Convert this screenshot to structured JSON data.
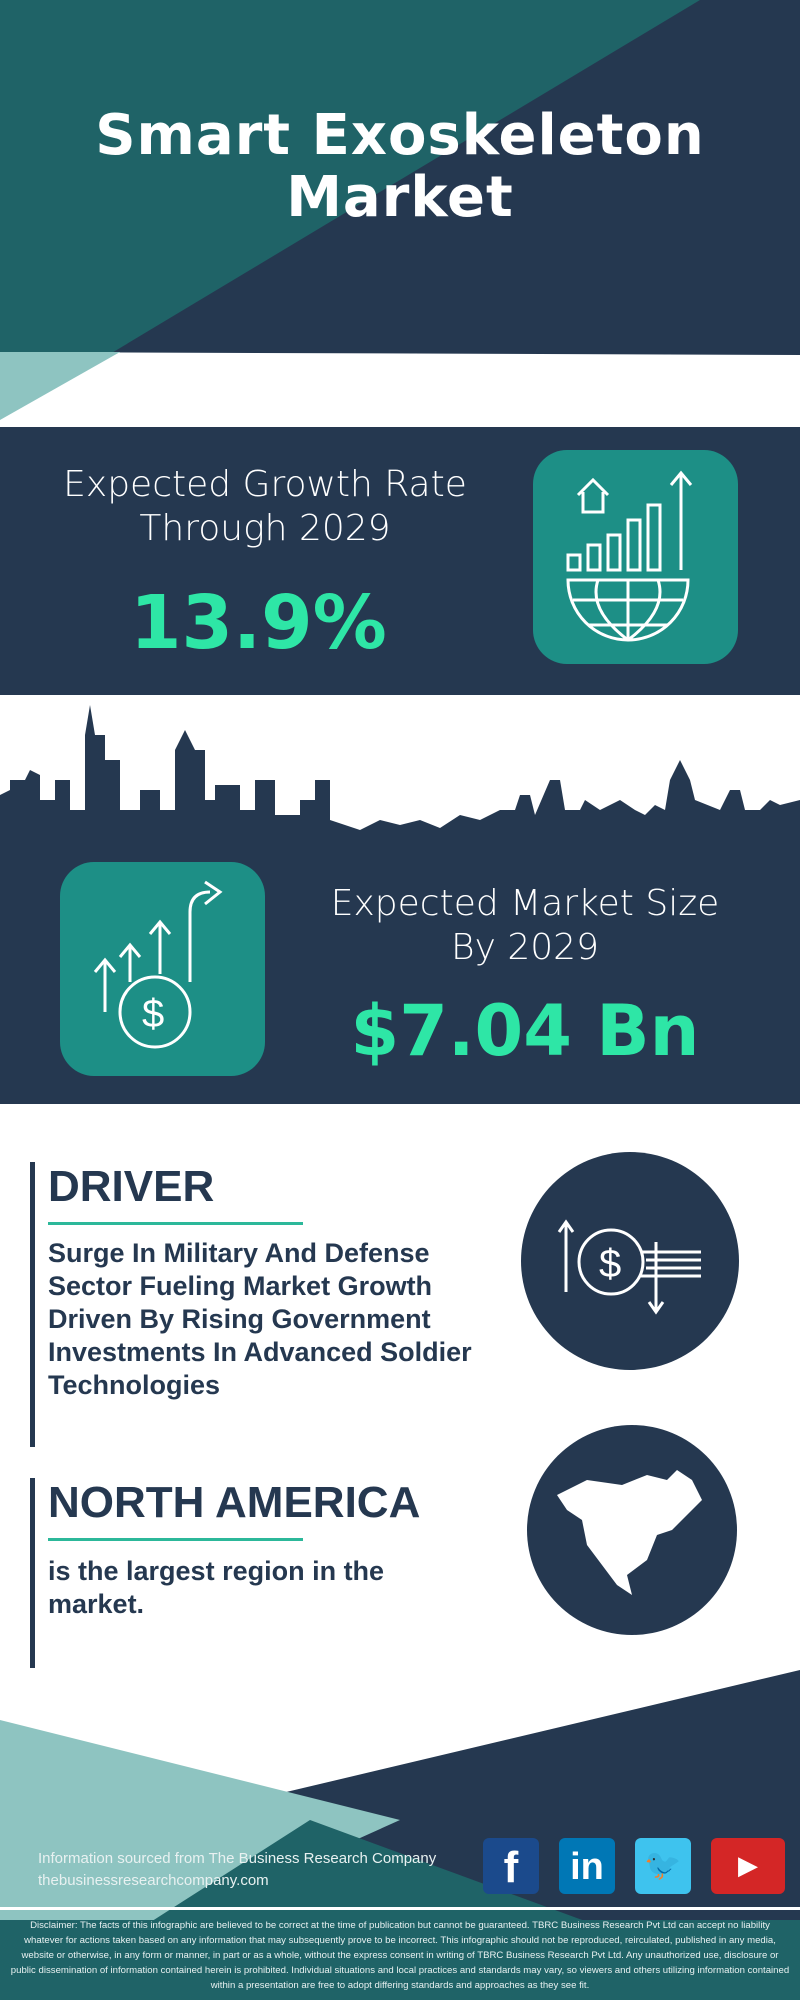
{
  "header": {
    "title": "Smart Exoskeleton Market"
  },
  "growth": {
    "label": "Expected Growth Rate Through 2029",
    "value": "13.9%",
    "icon": "globe-growth-chart-icon"
  },
  "market_size": {
    "label": "Expected Market Size By 2029",
    "value": "$7.04 Bn",
    "icon": "dollar-growth-arrows-icon"
  },
  "driver": {
    "heading": "DRIVER",
    "text": "Surge In Military And Defense Sector Fueling Market Growth Driven By Rising Government Investments In Advanced Soldier Technologies",
    "icon": "dollar-exchange-icon"
  },
  "region": {
    "heading": "NORTH AMERICA",
    "text": "is the largest region in the market.",
    "icon": "north-america-map-icon"
  },
  "footer": {
    "source": "Information sourced from The Business Research Company",
    "website": "thebusinessresearchcompany.com",
    "social": [
      {
        "name": "facebook",
        "glyph": "f",
        "color": "#1b4a8c"
      },
      {
        "name": "linkedin",
        "glyph": "in",
        "color": "#0077b5"
      },
      {
        "name": "twitter",
        "glyph": "🐦",
        "color": "#3ec3ee"
      },
      {
        "name": "youtube",
        "glyph": "▶",
        "color": "#d42626"
      }
    ],
    "disclaimer": "Disclaimer: The facts of this infographic are believed to be correct at the time of publication but cannot be guaranteed. TBRC Business Research Pvt Ltd can accept no liability whatever for actions taken based on any information that may subsequently prove to be incorrect. This infographic should not be reproduced, reirculated, published in any media, website or otherwise, in any form or manner, in part or as a whole, without the express consent in writing of TBRC Business Research Pvt Ltd. Any unauthorized use, disclosure or public dissemination of information contained herein is prohibited. Individual situations and local practices and standards may vary, so viewers and others utilizing information contained within a presentation are free to adopt differing standards and approaches as they see fit."
  },
  "colors": {
    "navy": "#253850",
    "teal": "#1f6367",
    "light_teal": "#8ec4c1",
    "accent": "#2ee6a6",
    "tile": "#1d8f86"
  }
}
